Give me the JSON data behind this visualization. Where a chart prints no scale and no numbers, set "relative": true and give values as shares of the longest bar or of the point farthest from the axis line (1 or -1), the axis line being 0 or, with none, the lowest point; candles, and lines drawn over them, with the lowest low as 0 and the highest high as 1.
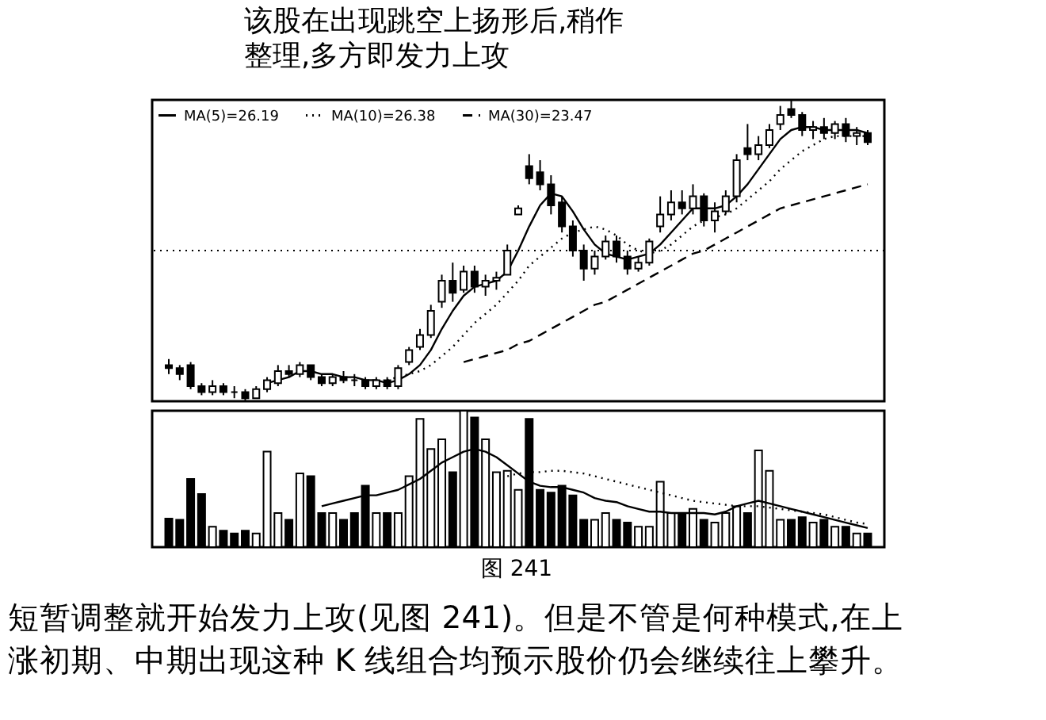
{
  "chart_data": [
    {
      "type": "candlestick",
      "relative": true,
      "legend": "top left",
      "categories": [
        null,
        null,
        null,
        null,
        null,
        null,
        null,
        null,
        null,
        null,
        null,
        null,
        null,
        null,
        null,
        null,
        null,
        null,
        null,
        null,
        null,
        null,
        null,
        null,
        null,
        null,
        null,
        null,
        null,
        null,
        null,
        null,
        null,
        null,
        null,
        null,
        null,
        null,
        null,
        null,
        null,
        null,
        null,
        null,
        null,
        null,
        null,
        null,
        null,
        null,
        null,
        null,
        null,
        null,
        null,
        null,
        null,
        null,
        null,
        null,
        null,
        null,
        null,
        null,
        null
      ],
      "ohlc": [
        [
          0.12,
          0.14,
          0.09,
          0.11
        ],
        [
          0.11,
          0.12,
          0.07,
          0.09
        ],
        [
          0.12,
          0.13,
          0.04,
          0.05
        ],
        [
          0.05,
          0.06,
          0.02,
          0.03
        ],
        [
          0.03,
          0.07,
          0.02,
          0.05
        ],
        [
          0.05,
          0.06,
          0.02,
          0.03
        ],
        [
          0.03,
          0.05,
          0.01,
          0.03
        ],
        [
          0.03,
          0.04,
          0,
          0.01
        ],
        [
          0.01,
          0.05,
          0.01,
          0.04
        ],
        [
          0.04,
          0.08,
          0.03,
          0.07
        ],
        [
          0.06,
          0.12,
          0.05,
          0.1
        ],
        [
          0.1,
          0.12,
          0.08,
          0.09
        ],
        [
          0.09,
          0.13,
          0.08,
          0.12
        ],
        [
          0.12,
          0.12,
          0.07,
          0.08
        ],
        [
          0.08,
          0.09,
          0.05,
          0.06
        ],
        [
          0.06,
          0.09,
          0.05,
          0.08
        ],
        [
          0.08,
          0.1,
          0.06,
          0.07
        ],
        [
          0.07,
          0.09,
          0.05,
          0.07
        ],
        [
          0.07,
          0.08,
          0.04,
          0.05
        ],
        [
          0.05,
          0.08,
          0.04,
          0.07
        ],
        [
          0.07,
          0.08,
          0.04,
          0.05
        ],
        [
          0.05,
          0.12,
          0.04,
          0.11
        ],
        [
          0.13,
          0.18,
          0.12,
          0.17
        ],
        [
          0.18,
          0.24,
          0.17,
          0.22
        ],
        [
          0.22,
          0.32,
          0.21,
          0.3
        ],
        [
          0.33,
          0.42,
          0.31,
          0.4
        ],
        [
          0.4,
          0.46,
          0.33,
          0.36
        ],
        [
          0.37,
          0.45,
          0.36,
          0.43
        ],
        [
          0.43,
          0.45,
          0.36,
          0.38
        ],
        [
          0.38,
          0.42,
          0.35,
          0.4
        ],
        [
          0.4,
          0.43,
          0.37,
          0.41
        ],
        [
          0.42,
          0.52,
          0.42,
          0.5
        ],
        [
          0.62,
          0.65,
          0.62,
          0.64
        ],
        [
          0.78,
          0.82,
          0.72,
          0.74
        ],
        [
          0.76,
          0.8,
          0.7,
          0.72
        ],
        [
          0.72,
          0.75,
          0.62,
          0.65
        ],
        [
          0.66,
          0.68,
          0.56,
          0.58
        ],
        [
          0.58,
          0.6,
          0.48,
          0.5
        ],
        [
          0.5,
          0.52,
          0.4,
          0.44
        ],
        [
          0.44,
          0.5,
          0.42,
          0.48
        ],
        [
          0.48,
          0.55,
          0.47,
          0.53
        ],
        [
          0.53,
          0.55,
          0.46,
          0.48
        ],
        [
          0.48,
          0.5,
          0.42,
          0.44
        ],
        [
          0.44,
          0.48,
          0.43,
          0.46
        ],
        [
          0.46,
          0.54,
          0.45,
          0.53
        ],
        [
          0.58,
          0.68,
          0.56,
          0.62
        ],
        [
          0.62,
          0.7,
          0.6,
          0.66
        ],
        [
          0.66,
          0.7,
          0.62,
          0.64
        ],
        [
          0.64,
          0.72,
          0.62,
          0.68
        ],
        [
          0.68,
          0.69,
          0.58,
          0.6
        ],
        [
          0.6,
          0.66,
          0.56,
          0.63
        ],
        [
          0.63,
          0.7,
          0.62,
          0.68
        ],
        [
          0.68,
          0.82,
          0.66,
          0.8
        ],
        [
          0.84,
          0.92,
          0.8,
          0.82
        ],
        [
          0.82,
          0.88,
          0.8,
          0.85
        ],
        [
          0.85,
          0.92,
          0.84,
          0.9
        ],
        [
          0.92,
          0.98,
          0.9,
          0.95
        ],
        [
          0.97,
          1,
          0.94,
          0.95
        ],
        [
          0.95,
          0.96,
          0.88,
          0.9
        ],
        [
          0.9,
          0.93,
          0.87,
          0.91
        ],
        [
          0.91,
          0.94,
          0.87,
          0.89
        ],
        [
          0.89,
          0.93,
          0.87,
          0.92
        ],
        [
          0.92,
          0.94,
          0.86,
          0.88
        ],
        [
          0.88,
          0.91,
          0.85,
          0.89
        ],
        [
          0.89,
          0.9,
          0.85,
          0.86
        ]
      ],
      "series": [
        {
          "type": "line",
          "name": "MA(5)=26.19",
          "color": "#000000",
          "line_style": "solid",
          "values": [
            null,
            null,
            null,
            null,
            null,
            null,
            null,
            null,
            null,
            0.06,
            0.07,
            0.08,
            0.1,
            0.1,
            0.09,
            0.09,
            0.08,
            0.08,
            0.07,
            0.07,
            0.06,
            0.07,
            0.09,
            0.12,
            0.17,
            0.24,
            0.3,
            0.35,
            0.38,
            0.39,
            0.4,
            0.43,
            0.5,
            0.58,
            0.65,
            0.69,
            0.68,
            0.63,
            0.57,
            0.52,
            0.49,
            0.48,
            0.47,
            0.48,
            0.49,
            0.52,
            0.56,
            0.6,
            0.64,
            0.64,
            0.64,
            0.65,
            0.68,
            0.72,
            0.77,
            0.82,
            0.87,
            0.9,
            0.91,
            0.91,
            0.9,
            0.9,
            0.9,
            0.9,
            0.89
          ]
        },
        {
          "type": "line",
          "name": "MA(10)=26.38",
          "color": "#000000",
          "line_style": "dotted",
          "values": [
            null,
            null,
            null,
            null,
            null,
            null,
            null,
            null,
            null,
            null,
            null,
            null,
            null,
            null,
            null,
            null,
            null,
            null,
            null,
            null,
            0.07,
            0.08,
            0.09,
            0.1,
            0.12,
            0.15,
            0.18,
            0.22,
            0.26,
            0.29,
            0.32,
            0.36,
            0.4,
            0.45,
            0.48,
            0.51,
            0.54,
            0.56,
            0.57,
            0.58,
            0.57,
            0.55,
            0.52,
            0.5,
            0.49,
            0.5,
            0.52,
            0.55,
            0.58,
            0.6,
            0.61,
            0.62,
            0.64,
            0.67,
            0.7,
            0.73,
            0.77,
            0.8,
            0.83,
            0.85,
            0.87,
            0.88,
            0.88,
            0.88,
            0.88
          ]
        },
        {
          "type": "line",
          "name": "MA(30)=23.47",
          "color": "#000000",
          "line_style": "dashed",
          "values": [
            null,
            null,
            null,
            null,
            null,
            null,
            null,
            null,
            null,
            null,
            null,
            null,
            null,
            null,
            null,
            null,
            null,
            null,
            null,
            null,
            null,
            null,
            null,
            null,
            null,
            null,
            null,
            0.13,
            0.14,
            0.15,
            0.16,
            0.17,
            0.19,
            0.2,
            0.22,
            0.24,
            0.26,
            0.28,
            0.3,
            0.32,
            0.33,
            0.35,
            0.37,
            0.39,
            0.41,
            0.43,
            0.45,
            0.47,
            0.49,
            0.5,
            0.52,
            0.54,
            0.56,
            0.58,
            0.6,
            0.62,
            0.64,
            0.65,
            0.66,
            0.67,
            0.68,
            0.69,
            0.7,
            0.71,
            0.72
          ]
        }
      ],
      "ref_lines": [
        {
          "axis": "y",
          "value": 0.5,
          "line_style": "dotted",
          "color": "#000000"
        }
      ],
      "annotations": [
        "该股在出现跳空上扬形后,稍作",
        "整理,多方即发力上攻"
      ]
    },
    {
      "type": "bar",
      "relative": true,
      "categories": [
        null,
        null,
        null,
        null,
        null,
        null,
        null,
        null,
        null,
        null,
        null,
        null,
        null,
        null,
        null,
        null,
        null,
        null,
        null,
        null,
        null,
        null,
        null,
        null,
        null,
        null,
        null,
        null,
        null,
        null,
        null,
        null,
        null,
        null,
        null,
        null,
        null,
        null,
        null,
        null,
        null,
        null,
        null,
        null,
        null,
        null,
        null,
        null,
        null,
        null,
        null,
        null,
        null,
        null,
        null,
        null,
        null,
        null,
        null,
        null,
        null,
        null,
        null,
        null,
        null
      ],
      "series": [
        {
          "type": "bar",
          "values": [
            0.21,
            0.2,
            0.5,
            0.39,
            0.15,
            0.12,
            0.1,
            0.12,
            0.1,
            0.7,
            0.25,
            0.2,
            0.54,
            0.52,
            0.25,
            0.25,
            0.2,
            0.25,
            0.45,
            0.25,
            0.25,
            0.25,
            0.52,
            0.94,
            0.72,
            0.79,
            0.55,
            1,
            0.95,
            0.79,
            0.55,
            0.56,
            0.42,
            0.94,
            0.42,
            0.4,
            0.45,
            0.38,
            0.2,
            0.2,
            0.25,
            0.2,
            0.18,
            0.15,
            0.15,
            0.48,
            0.25,
            0.25,
            0.28,
            0.2,
            0.18,
            0.25,
            0.3,
            0.25,
            0.71,
            0.56,
            0.2,
            0.2,
            0.22,
            0.18,
            0.2,
            0.15,
            0.15,
            0.1,
            0.1
          ],
          "colors": [
            "#000000",
            "#000000",
            "#000000",
            "#000000",
            "#ffffff",
            "#000000",
            "#000000",
            "#000000",
            "#ffffff",
            "#ffffff",
            "#ffffff",
            "#000000",
            "#ffffff",
            "#000000",
            "#000000",
            "#ffffff",
            "#000000",
            "#000000",
            "#000000",
            "#ffffff",
            "#000000",
            "#ffffff",
            "#ffffff",
            "#ffffff",
            "#ffffff",
            "#ffffff",
            "#000000",
            "#ffffff",
            "#000000",
            "#ffffff",
            "#ffffff",
            "#ffffff",
            "#ffffff",
            "#000000",
            "#000000",
            "#000000",
            "#000000",
            "#000000",
            "#000000",
            "#ffffff",
            "#ffffff",
            "#000000",
            "#000000",
            "#ffffff",
            "#ffffff",
            "#ffffff",
            "#ffffff",
            "#000000",
            "#ffffff",
            "#000000",
            "#ffffff",
            "#ffffff",
            "#ffffff",
            "#000000",
            "#ffffff",
            "#ffffff",
            "#ffffff",
            "#000000",
            "#000000",
            "#ffffff",
            "#000000",
            "#ffffff",
            "#000000",
            "#ffffff",
            "#000000"
          ]
        },
        {
          "type": "line",
          "color": "#000000",
          "line_style": "solid",
          "values": [
            null,
            null,
            null,
            null,
            null,
            null,
            null,
            null,
            null,
            null,
            null,
            null,
            null,
            null,
            0.3,
            0.32,
            0.34,
            0.36,
            0.38,
            0.38,
            0.4,
            0.42,
            0.46,
            0.5,
            0.56,
            0.62,
            0.66,
            0.7,
            0.72,
            0.7,
            0.66,
            0.6,
            0.54,
            0.48,
            0.45,
            0.44,
            0.44,
            0.42,
            0.4,
            0.36,
            0.34,
            0.33,
            0.3,
            0.28,
            0.26,
            0.26,
            0.25,
            0.25,
            0.25,
            0.25,
            0.24,
            0.26,
            0.3,
            0.32,
            0.34,
            0.32,
            0.3,
            0.28,
            0.26,
            0.24,
            0.22,
            0.2,
            0.18,
            0.16,
            0.14
          ]
        },
        {
          "type": "line",
          "color": "#000000",
          "line_style": "dotted",
          "values": [
            null,
            null,
            null,
            null,
            null,
            null,
            null,
            null,
            null,
            null,
            null,
            null,
            null,
            null,
            null,
            null,
            null,
            null,
            null,
            null,
            null,
            null,
            null,
            null,
            null,
            null,
            null,
            null,
            null,
            null,
            null,
            0.52,
            0.54,
            0.55,
            0.55,
            0.56,
            0.56,
            0.55,
            0.54,
            0.52,
            0.5,
            0.48,
            0.46,
            0.44,
            0.42,
            0.4,
            0.38,
            0.36,
            0.34,
            0.33,
            0.32,
            0.31,
            0.3,
            0.3,
            0.3,
            0.29,
            0.28,
            0.27,
            0.26,
            0.25,
            0.24,
            0.22,
            0.2,
            0.18,
            0.17
          ]
        }
      ],
      "annotations": [
        "图 241",
        "短暂调整就开始发力上攻(见图 241)。但是不管是何种模式,在上",
        "涨初期、中期出现这种 K 线组合均预示股价仍会继续往上攀升。"
      ]
    }
  ]
}
